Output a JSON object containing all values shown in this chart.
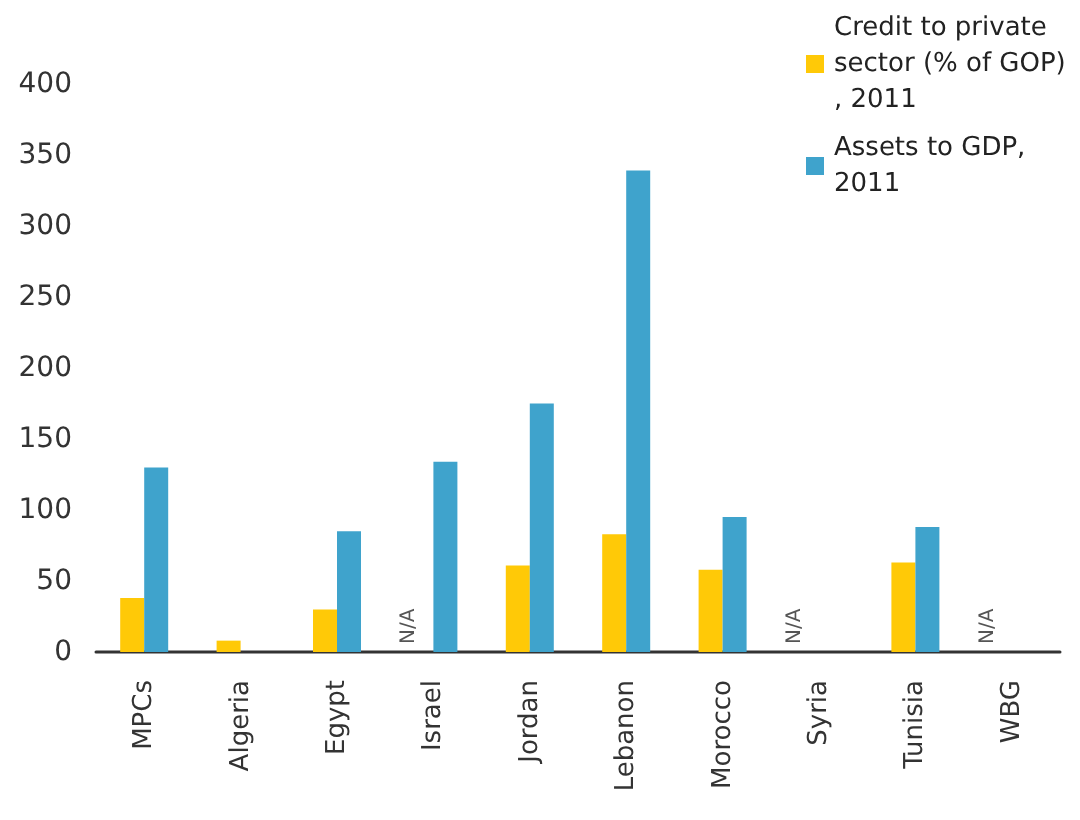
{
  "chart_data": {
    "type": "bar",
    "categories": [
      "MPCs",
      "Algeria",
      "Egypt",
      "Israel",
      "Jordan",
      "Lebanon",
      "Morocco",
      "Syria",
      "Tunisia",
      "WBG"
    ],
    "series": [
      {
        "name": "Credit to private sector (% of GOP), 2011",
        "color": "#ffc907",
        "values": [
          38,
          8,
          30,
          null,
          61,
          83,
          58,
          null,
          63,
          null
        ],
        "value_labels": [
          null,
          null,
          null,
          "N/A",
          null,
          null,
          null,
          "N/A",
          null,
          "N/A"
        ]
      },
      {
        "name": "Assets to GDP, 2011",
        "color": "#3fa3cc",
        "values": [
          130,
          null,
          85,
          134,
          175,
          339,
          95,
          null,
          88,
          null
        ]
      }
    ],
    "ylim": [
      0,
      400
    ],
    "yticks": [
      0,
      50,
      100,
      150,
      200,
      250,
      300,
      350,
      400
    ],
    "grid": false,
    "legend": "top right"
  }
}
